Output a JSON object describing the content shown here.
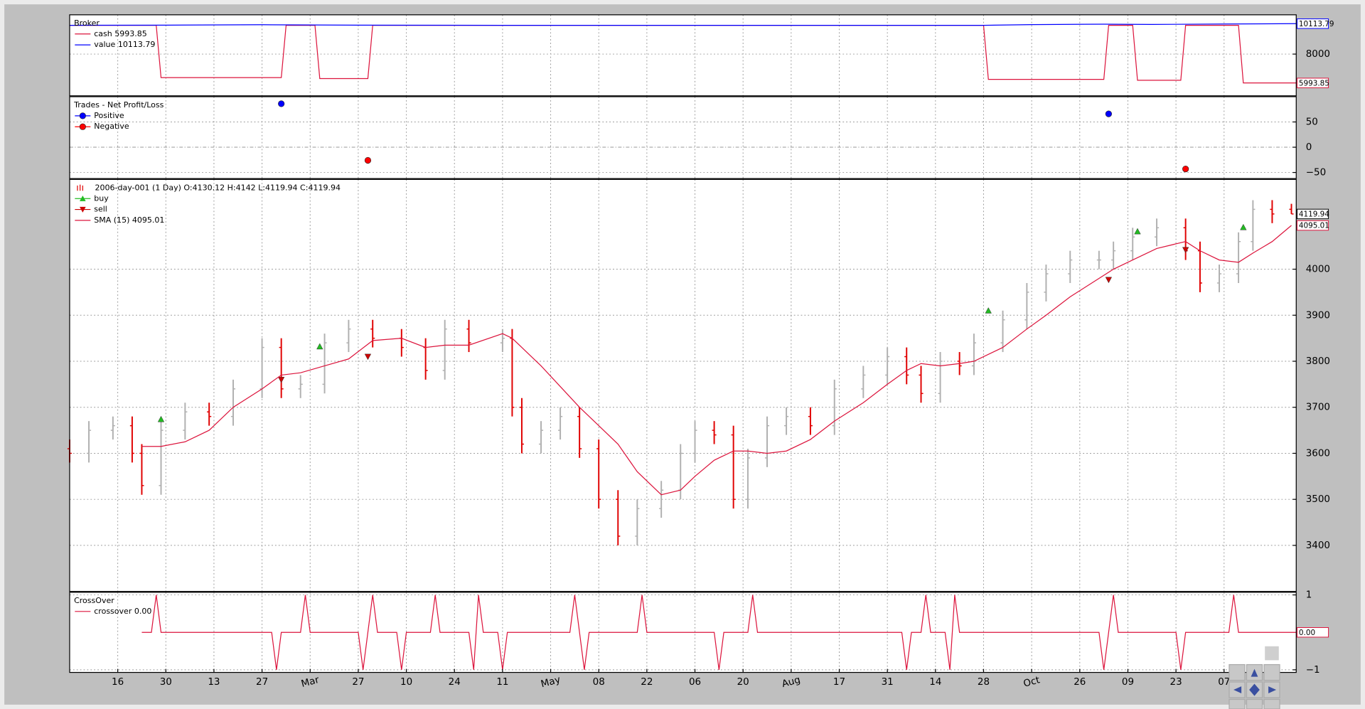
{
  "chart_data": [
    {
      "type": "line",
      "title": "Broker",
      "ylim": [
        5100,
        10730
      ],
      "yticks": [
        8000
      ],
      "grid": true,
      "series": [
        {
          "name": "cash 5993.85",
          "color": "#dc143c",
          "tag": 5993.85,
          "x": [
            0,
            18,
            19,
            44,
            45,
            51,
            52,
            62,
            63,
            190,
            191,
            215,
            216,
            221,
            222,
            231,
            232,
            243,
            244,
            255
          ],
          "values": [
            10000,
            10000,
            6364,
            6364,
            10000,
            10000,
            6300,
            6300,
            10000,
            10000,
            6242,
            6242,
            10000,
            10000,
            6180,
            6180,
            10000,
            10000,
            5993.85,
            5993.85
          ]
        },
        {
          "name": "value 10113.79",
          "color": "#0000ff",
          "tag": 10113.79,
          "x": [
            0,
            20,
            40,
            60,
            90,
            120,
            150,
            180,
            190,
            200,
            215,
            225,
            240,
            255
          ],
          "values": [
            10000,
            10010,
            10040,
            10010,
            10000,
            10000,
            10000,
            10000,
            10000,
            10050,
            10080,
            10060,
            10090,
            10113.79
          ]
        }
      ]
    },
    {
      "type": "scatter",
      "title": "Trades - Net Profit/Loss",
      "ylim": [
        -62,
        100
      ],
      "yticks": [
        50,
        0,
        {
          "value": -50,
          "label": "−50"
        }
      ],
      "grid": true,
      "series": [
        {
          "name": "Positive",
          "color": "#0000ff",
          "x": [
            44,
            216
          ],
          "values": [
            86,
            66
          ]
        },
        {
          "name": "Negative",
          "color": "#ff0000",
          "x": [
            62,
            232
          ],
          "values": [
            -26,
            -43
          ]
        }
      ]
    },
    {
      "type": "ohlc",
      "title": "2006-day-001 (1 Day) O:4130.12 H:4142 L:4119.94 C:4119.94",
      "ylim": [
        3300,
        4195
      ],
      "yticks": [
        3400,
        3500,
        3600,
        3700,
        3800,
        3900,
        4000
      ],
      "grid": true,
      "up_color": "#b0b0b0",
      "down_color": "#e00000",
      "tag": 4119.94,
      "x": [
        0,
        4,
        9,
        13,
        15,
        19,
        24,
        29,
        34,
        40,
        44,
        48,
        53,
        58,
        63,
        69,
        74,
        78,
        83,
        90,
        92,
        94,
        98,
        102,
        106,
        110,
        114,
        118,
        123,
        127,
        130,
        134,
        138,
        141,
        145,
        149,
        154,
        159,
        165,
        170,
        174,
        177,
        181,
        185,
        188,
        194,
        199,
        203,
        208,
        214,
        217,
        221,
        226,
        232,
        235,
        239,
        243,
        246,
        250,
        254
      ],
      "open": [
        3610,
        3600,
        3650,
        3660,
        3600,
        3530,
        3650,
        3690,
        3680,
        3740,
        3830,
        3740,
        3750,
        3840,
        3870,
        3850,
        3830,
        3780,
        3870,
        3840,
        3850,
        3700,
        3620,
        3650,
        3680,
        3610,
        3500,
        3420,
        3480,
        3520,
        3600,
        3650,
        3640,
        3500,
        3590,
        3660,
        3680,
        3660,
        3740,
        3770,
        3810,
        3770,
        3730,
        3800,
        3790,
        3840,
        3890,
        3950,
        3990,
        4020,
        4020,
        4040,
        4070,
        4090,
        4040,
        3970,
        3990,
        4060,
        4130,
        4130.12
      ],
      "high": [
        3630,
        3670,
        3680,
        3680,
        3620,
        3670,
        3710,
        3710,
        3760,
        3850,
        3850,
        3770,
        3860,
        3890,
        3890,
        3870,
        3850,
        3890,
        3890,
        3870,
        3870,
        3720,
        3670,
        3700,
        3700,
        3630,
        3520,
        3500,
        3540,
        3620,
        3670,
        3670,
        3660,
        3610,
        3680,
        3700,
        3700,
        3760,
        3790,
        3830,
        3830,
        3790,
        3820,
        3820,
        3860,
        3910,
        3970,
        4010,
        4040,
        4040,
        4060,
        4090,
        4110,
        4110,
        4060,
        4010,
        4080,
        4150,
        4150,
        4142
      ],
      "low": [
        3580,
        3580,
        3630,
        3580,
        3510,
        3510,
        3630,
        3660,
        3660,
        3720,
        3720,
        3720,
        3730,
        3820,
        3830,
        3810,
        3760,
        3760,
        3820,
        3820,
        3680,
        3600,
        3600,
        3630,
        3590,
        3480,
        3400,
        3400,
        3460,
        3500,
        3580,
        3620,
        3480,
        3480,
        3570,
        3640,
        3640,
        3640,
        3720,
        3750,
        3750,
        3710,
        3710,
        3770,
        3770,
        3820,
        3870,
        3930,
        3970,
        4000,
        4000,
        4020,
        4050,
        4020,
        3950,
        3950,
        3970,
        4040,
        4100,
        4119.94
      ],
      "close": [
        3600,
        3650,
        3660,
        3600,
        3530,
        3650,
        3690,
        3680,
        3740,
        3830,
        3740,
        3750,
        3840,
        3870,
        3850,
        3830,
        3780,
        3870,
        3840,
        3850,
        3700,
        3620,
        3650,
        3680,
        3610,
        3500,
        3420,
        3480,
        3520,
        3600,
        3650,
        3640,
        3500,
        3590,
        3660,
        3680,
        3660,
        3740,
        3770,
        3810,
        3770,
        3730,
        3800,
        3790,
        3840,
        3890,
        3950,
        3990,
        4020,
        4020,
        4040,
        4070,
        4090,
        4040,
        3970,
        3990,
        4060,
        4130,
        4120,
        4119.94
      ],
      "series": [
        {
          "name": "buy",
          "marker": "triangle-up",
          "color": "#22bb22",
          "x": [
            19,
            52,
            191,
            222,
            244
          ],
          "values": [
            3674,
            3832,
            3910,
            4082,
            4091
          ]
        },
        {
          "name": "sell",
          "marker": "triangle-down",
          "color": "#cc0000",
          "x": [
            44,
            62,
            216,
            232
          ],
          "values": [
            3760,
            3810,
            3977,
            4042
          ]
        },
        {
          "name": "SMA (15) 4095.01",
          "color": "#dc143c",
          "tag": 4095.01,
          "values": [
            null,
            null,
            null,
            null,
            3615,
            3615,
            3625,
            3650,
            3700,
            3740,
            3770,
            3775,
            3790,
            3805,
            3845,
            3850,
            3830,
            3835,
            3835,
            3860,
            3850,
            3830,
            3790,
            3745,
            3700,
            3660,
            3620,
            3560,
            3510,
            3520,
            3550,
            3585,
            3605,
            3605,
            3600,
            3605,
            3630,
            3670,
            3710,
            3750,
            3780,
            3795,
            3790,
            3795,
            3800,
            3830,
            3870,
            3900,
            3940,
            3980,
            4000,
            4020,
            4045,
            4060,
            4040,
            4020,
            4015,
            4035,
            4060,
            4095.01
          ]
        }
      ]
    },
    {
      "type": "line",
      "title": "CrossOver",
      "ylim": [
        -1.07,
        1.07
      ],
      "yticks": [
        1,
        {
          "value": -1,
          "label": "−1"
        }
      ],
      "grid": true,
      "xlim": [
        0,
        255
      ],
      "xticks": [
        {
          "value": 10,
          "label": "16"
        },
        {
          "value": 20,
          "label": "30"
        },
        {
          "value": 30,
          "label": "13"
        },
        {
          "value": 40,
          "label": "27"
        },
        {
          "value": 50,
          "label": "Mar"
        },
        {
          "value": 60,
          "label": "27"
        },
        {
          "value": 70,
          "label": "10"
        },
        {
          "value": 80,
          "label": "24"
        },
        {
          "value": 90,
          "label": "11"
        },
        {
          "value": 100,
          "label": "May"
        },
        {
          "value": 110,
          "label": "08"
        },
        {
          "value": 120,
          "label": "22"
        },
        {
          "value": 130,
          "label": "06"
        },
        {
          "value": 140,
          "label": "20"
        },
        {
          "value": 150,
          "label": "Aug"
        },
        {
          "value": 160,
          "label": "17"
        },
        {
          "value": 170,
          "label": "31"
        },
        {
          "value": 180,
          "label": "14"
        },
        {
          "value": 190,
          "label": "28"
        },
        {
          "value": 200,
          "label": "Oct"
        },
        {
          "value": 210,
          "label": "26"
        },
        {
          "value": 220,
          "label": "09"
        },
        {
          "value": 230,
          "label": "23"
        },
        {
          "value": 240,
          "label": "07"
        }
      ],
      "series": [
        {
          "name": "crossover 0.00",
          "color": "#dc143c",
          "tag": {
            "value": 0,
            "label": "0.00"
          },
          "x": [
            15,
            17,
            18,
            19,
            42,
            43,
            44,
            48,
            49,
            50,
            60,
            61,
            62,
            63,
            64,
            68,
            69,
            70,
            75,
            76,
            77,
            83,
            84,
            85,
            86,
            89,
            90,
            91,
            104,
            105,
            106,
            107,
            108,
            118,
            119,
            120,
            134,
            135,
            136,
            141,
            142,
            143,
            173,
            174,
            175,
            177,
            178,
            179,
            182,
            183,
            184,
            185,
            214,
            215,
            216,
            217,
            218,
            230,
            231,
            232,
            241,
            242,
            243,
            255
          ],
          "values": [
            0,
            0,
            1,
            0,
            0,
            -1,
            0,
            0,
            1,
            0,
            0,
            -1,
            0,
            1,
            0,
            0,
            -1,
            0,
            0,
            1,
            0,
            0,
            -1,
            1,
            0,
            0,
            -1,
            0,
            0,
            1,
            0,
            -1,
            0,
            0,
            1,
            0,
            0,
            -1,
            0,
            0,
            1,
            0,
            0,
            -1,
            0,
            0,
            1,
            0,
            0,
            -1,
            1,
            0,
            0,
            -1,
            0,
            1,
            0,
            0,
            -1,
            0,
            0,
            1,
            0,
            0
          ]
        }
      ]
    }
  ]
}
